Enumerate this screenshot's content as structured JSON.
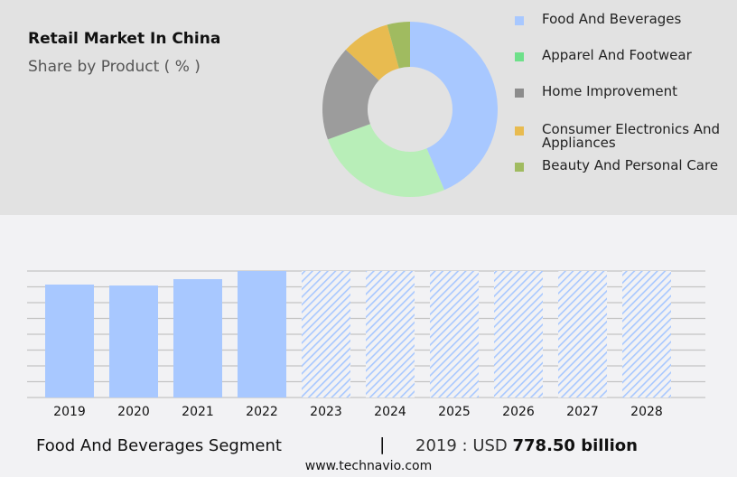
{
  "header": {
    "title": "Retail Market In China",
    "subtitle": "Share by Product ( % )"
  },
  "chart_data": [
    {
      "type": "pie",
      "donut": true,
      "labels": [
        "Food And Beverages",
        "Apparel And Footwear",
        "Home Improvement",
        "Consumer Electronics And Appliances",
        "Beauty And Personal Care"
      ],
      "values": [
        43.6,
        25.8,
        17.5,
        8.9,
        4.2
      ],
      "colors": [
        "#a8c8ff",
        "#b8eeb8",
        "#9c9c9c",
        "#e8bb50",
        "#a0bb60"
      ],
      "legend_colors": [
        "#a8c8ff",
        "#6ee08a",
        "#8c8c8c",
        "#e8bb50",
        "#a0bb60"
      ],
      "legend": "right"
    },
    {
      "type": "bar",
      "categories": [
        "2019",
        "2020",
        "2021",
        "2022",
        "2023",
        "2024",
        "2025",
        "2026",
        "2027",
        "2028"
      ],
      "values": [
        778.5,
        772,
        816,
        872,
        null,
        null,
        null,
        null,
        null,
        null
      ],
      "forecast": [
        false,
        false,
        false,
        false,
        true,
        true,
        true,
        true,
        true,
        true
      ],
      "ylim": [
        0,
        872
      ],
      "grid": true,
      "color": "#a8c8ff"
    }
  ],
  "footer": {
    "segment": "Food And Beverages Segment",
    "separator": "|",
    "year_label": "2019 : USD ",
    "value": "778.50 billion",
    "site": "www.technavio.com"
  }
}
